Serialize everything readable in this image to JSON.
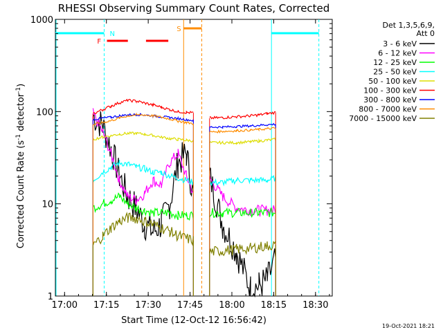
{
  "chart_data": {
    "type": "line",
    "title": "RHESSI Observing Summary Count Rates, Corrected",
    "xlabel": "Start Time (12-Oct-12 16:56:42)",
    "ylabel_main": "Corrected Count Rate (s",
    "ylabel_sup1": "-1",
    "ylabel_mid": " detector",
    "ylabel_sup2": "-1",
    "ylabel_end": ")",
    "yscale": "log",
    "ylim": [
      1,
      1000
    ],
    "xlim": [
      "16:56:42",
      "18:36:00"
    ],
    "x_ticks": [
      "17:00",
      "17:15",
      "17:30",
      "17:45",
      "18:00",
      "18:15",
      "18:30"
    ],
    "x_tick_minutes": [
      3.3,
      18.3,
      33.3,
      48.3,
      63.3,
      78.3,
      93.3
    ],
    "y_ticks": [
      "1",
      "10",
      "100",
      "1000"
    ],
    "y_tick_values": [
      1,
      10,
      100,
      1000
    ],
    "legend_header": [
      "Det 1,3,5,6,9,",
      "Att 0"
    ],
    "legend_position": "top-right",
    "timestamp": "19-Oct-2021 18:21",
    "flags": [
      {
        "label": "N",
        "color": "#00ffff"
      },
      {
        "label": "F",
        "color": "#ff0000"
      },
      {
        "label": "S",
        "color": "#ff8c00"
      }
    ],
    "series": [
      {
        "name": "3 - 6 keV",
        "color": "#000000",
        "values": [
          0,
          90,
          70,
          40,
          20,
          12,
          9,
          6,
          5,
          6,
          10,
          28,
          35,
          12,
          0,
          20,
          6,
          3,
          1.2,
          1.3,
          1.5,
          2.5,
          0
        ]
      },
      {
        "name": "6 - 12 keV",
        "color": "#ff00ff",
        "values": [
          0,
          95,
          60,
          35,
          18,
          12,
          11,
          13,
          18,
          16,
          28,
          35,
          20,
          13,
          0,
          19,
          12,
          9,
          8.5,
          8.5,
          8.5,
          8.5,
          0
        ]
      },
      {
        "name": "12 - 25 keV",
        "color": "#00ff00",
        "values": [
          0,
          9,
          10,
          11,
          12,
          10,
          9,
          8.5,
          8,
          8,
          8,
          7.5,
          7.5,
          7.5,
          0,
          8,
          8,
          8,
          8,
          8,
          8,
          8,
          0
        ]
      },
      {
        "name": "25 - 50 keV",
        "color": "#00ffff",
        "values": [
          0,
          18,
          22,
          25,
          28,
          27,
          25,
          24,
          22,
          22,
          20,
          19,
          18,
          17,
          0,
          17,
          17,
          18,
          18,
          18,
          18,
          19,
          0
        ]
      },
      {
        "name": "50 - 100 keV",
        "color": "#dddd00",
        "values": [
          0,
          50,
          53,
          55,
          57,
          58,
          58,
          57,
          55,
          53,
          51,
          50,
          49,
          48,
          0,
          46,
          46,
          46,
          47,
          48,
          49,
          50,
          0
        ]
      },
      {
        "name": "100 - 300 keV",
        "color": "#ff0000",
        "values": [
          0,
          95,
          105,
          115,
          125,
          132,
          130,
          124,
          118,
          112,
          105,
          100,
          98,
          97,
          0,
          85,
          86,
          88,
          90,
          92,
          95,
          98,
          0
        ]
      },
      {
        "name": "300 - 800 keV",
        "color": "#0000ff",
        "values": [
          0,
          82,
          85,
          87,
          90,
          92,
          93,
          92,
          90,
          88,
          86,
          84,
          82,
          80,
          0,
          68,
          68,
          69,
          70,
          71,
          72,
          73,
          0
        ]
      },
      {
        "name": "800 - 7000 keV",
        "color": "#ff8c00",
        "values": [
          0,
          72,
          76,
          80,
          85,
          90,
          92,
          92,
          90,
          87,
          83,
          79,
          76,
          74,
          0,
          60,
          61,
          62,
          63,
          64,
          65,
          66,
          0
        ]
      },
      {
        "name": "7000 - 15000 keV",
        "color": "#808000",
        "values": [
          0,
          3.5,
          4.5,
          5.5,
          6.5,
          7,
          7,
          6.5,
          6,
          5.5,
          5,
          4.5,
          4.2,
          4,
          0,
          3,
          3.1,
          3.2,
          3.3,
          3.4,
          3.5,
          3.6,
          0
        ]
      }
    ],
    "x_minutes": [
      12.8,
      13.5,
      17,
      20,
      23,
      26,
      29,
      32,
      35,
      38,
      41,
      44,
      47,
      49.5,
      52,
      55.3,
      60,
      65,
      70,
      73,
      76,
      79,
      80.3
    ]
  }
}
